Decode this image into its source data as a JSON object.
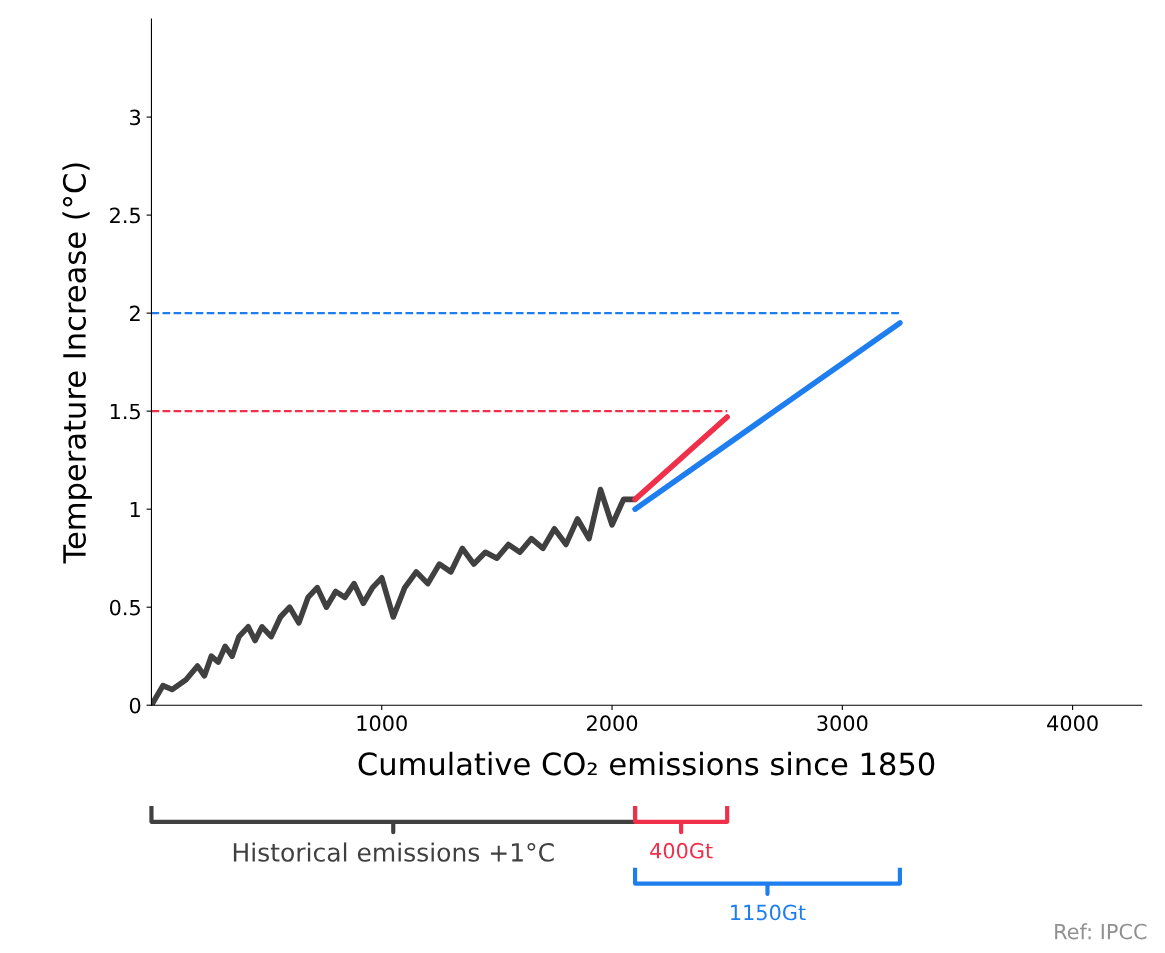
{
  "chart_data": {
    "type": "line",
    "xlabel": "Cumulative CO₂ emissions since 1850",
    "ylabel": "Temperature Increase (°C)",
    "xlim": [
      0,
      4300
    ],
    "ylim": [
      0,
      3.5
    ],
    "xticks": [
      1000,
      2000,
      3000,
      4000
    ],
    "yticks": [
      0,
      0.5,
      1,
      1.5,
      2,
      2.5,
      3
    ],
    "grid": false,
    "series": [
      {
        "color": "#404040",
        "x": [
          0,
          50,
          90,
          150,
          200,
          230,
          260,
          290,
          320,
          350,
          380,
          420,
          450,
          480,
          520,
          560,
          600,
          640,
          680,
          720,
          760,
          800,
          840,
          880,
          920,
          960,
          1000,
          1050,
          1100,
          1150,
          1200,
          1250,
          1300,
          1350,
          1400,
          1450,
          1500,
          1550,
          1600,
          1650,
          1700,
          1750,
          1800,
          1850,
          1900,
          1950,
          2000,
          2050,
          2100
        ],
        "values": [
          0,
          0.1,
          0.08,
          0.13,
          0.2,
          0.15,
          0.25,
          0.22,
          0.3,
          0.25,
          0.35,
          0.4,
          0.33,
          0.4,
          0.35,
          0.45,
          0.5,
          0.42,
          0.55,
          0.6,
          0.5,
          0.58,
          0.55,
          0.62,
          0.52,
          0.6,
          0.65,
          0.45,
          0.6,
          0.68,
          0.62,
          0.72,
          0.68,
          0.8,
          0.72,
          0.78,
          0.75,
          0.82,
          0.78,
          0.85,
          0.8,
          0.9,
          0.82,
          0.95,
          0.85,
          1.1,
          0.92,
          1.05,
          1.05
        ]
      },
      {
        "color": "#f0304a",
        "x": [
          2100,
          2500
        ],
        "values": [
          1.05,
          1.47
        ]
      },
      {
        "color": "#1e7ef0",
        "x": [
          2100,
          3250
        ],
        "values": [
          1.0,
          1.95
        ]
      },
      {
        "color": "#f0304a",
        "x": [
          0,
          2500
        ],
        "values": [
          1.5,
          1.5
        ],
        "line_style": "dashed"
      },
      {
        "color": "#1e7ef0",
        "x": [
          0,
          3250
        ],
        "values": [
          2.0,
          2.0
        ],
        "line_style": "dashed"
      }
    ],
    "annotations": [
      "Historical emissions +1°C",
      "400Gt",
      "1150Gt",
      "Ref: IPCC"
    ]
  }
}
